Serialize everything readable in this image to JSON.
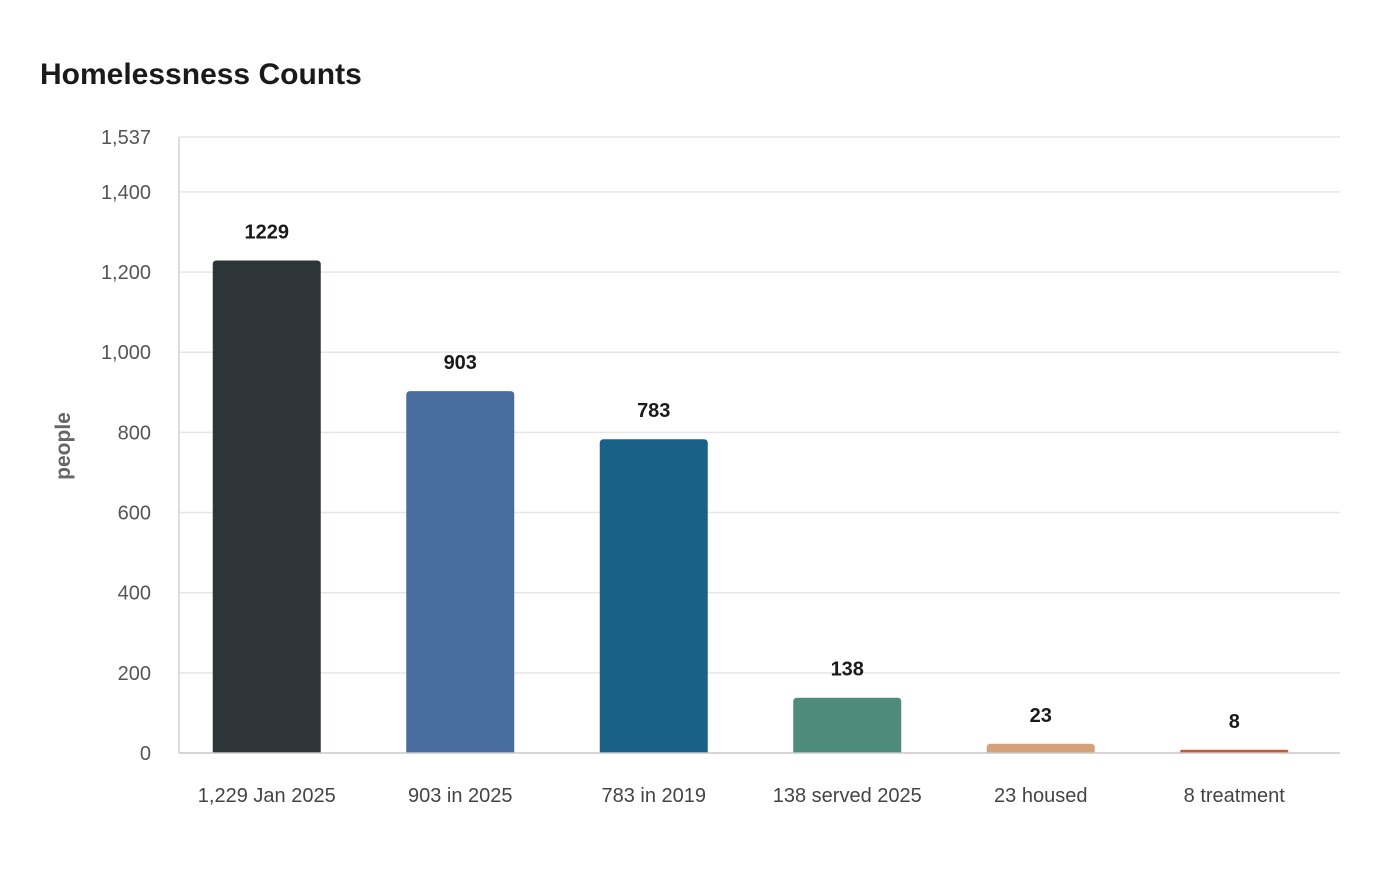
{
  "chart_data": {
    "type": "bar",
    "title": "Homelessness Counts",
    "xlabel": "",
    "ylabel": "people",
    "ylim": [
      0,
      1537
    ],
    "yticks": [
      0,
      200,
      400,
      600,
      800,
      1000,
      1200,
      1400,
      1537
    ],
    "ytick_labels": [
      "0",
      "200",
      "400",
      "600",
      "800",
      "1,000",
      "1,200",
      "1,400",
      "1,537"
    ],
    "categories": [
      "1,229 Jan 2025",
      "903 in 2025",
      "783 in 2019",
      "138 served 2025",
      "23 housed",
      "8 treatment"
    ],
    "values": [
      1229,
      903,
      783,
      138,
      23,
      8
    ],
    "value_labels": [
      "1229",
      "903",
      "783",
      "138",
      "23",
      "8"
    ],
    "colors": [
      "#2d3538",
      "#4a6da0",
      "#1a6188",
      "#4d8c7a",
      "#d4a27a",
      "#c45a3c"
    ],
    "grid": true,
    "legend": "none"
  }
}
